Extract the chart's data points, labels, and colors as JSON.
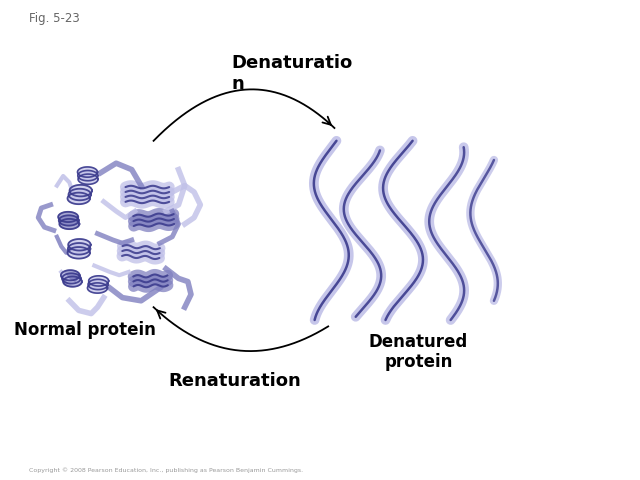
{
  "fig_label": "Fig. 5-23",
  "title_denaturation": "Denaturatio\nn",
  "title_renaturation": "Renaturation",
  "label_normal": "Normal protein",
  "label_denatured": "Denatured\nprotein",
  "copyright": "Copyright © 2008 Pearson Education, Inc., publishing as Pearson Benjamin Cummings.",
  "protein_color_dark": "#3a3a8c",
  "protein_color_mid": "#8080c0",
  "protein_color_light": "#c0c0e8",
  "background_color": "#ffffff",
  "text_color": "#000000",
  "arrow_color": "#000000",
  "fig_label_color": "#666666",
  "copyright_color": "#999999"
}
